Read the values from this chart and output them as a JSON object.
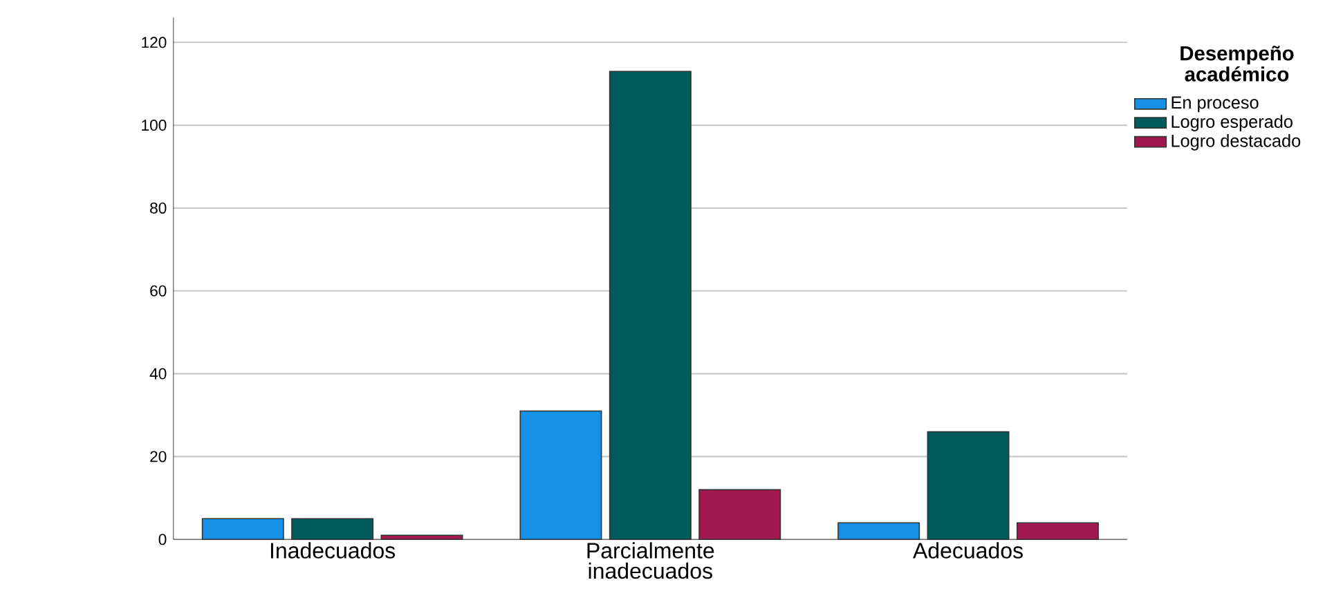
{
  "chart_data": {
    "type": "bar",
    "legend_title": "Desempeño académico",
    "categories": [
      "Inadecuados",
      "Parcialmente inadecuados",
      "Adecuados"
    ],
    "series": [
      {
        "name": "En proceso",
        "color": "#1590e6",
        "values": [
          5,
          31,
          4
        ]
      },
      {
        "name": "Logro esperado",
        "color": "#005c5c",
        "values": [
          5,
          113,
          26
        ]
      },
      {
        "name": "Logro destacado",
        "color": "#a1184f",
        "values": [
          1,
          12,
          4
        ]
      }
    ],
    "ylim": [
      0,
      126
    ],
    "yticks": [
      0,
      20,
      40,
      60,
      80,
      100,
      120
    ],
    "grid": "y",
    "legend": "top right"
  }
}
